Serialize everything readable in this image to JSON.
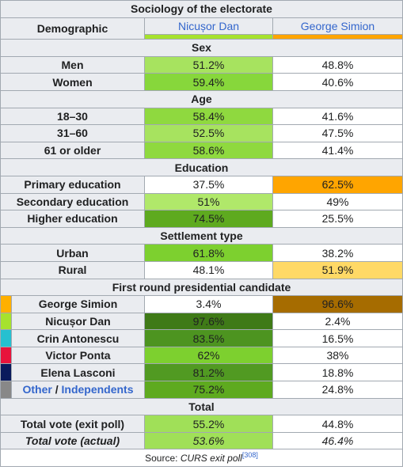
{
  "table": {
    "title": "Sociology of the electorate",
    "header": {
      "demographic_label": "Demographic",
      "candidate_1": "Nicușor Dan",
      "candidate_2": "George Simion",
      "candidate_1_color": "#a6e22e",
      "candidate_2_color": "#ffa500"
    },
    "sections": [
      {
        "title": "Sex",
        "rows": [
          {
            "label": "Men",
            "v1": "51.2%",
            "v2": "48.8%",
            "bg1": "#a7e35f",
            "bg2": "#ffffff"
          },
          {
            "label": "Women",
            "v1": "59.4%",
            "v2": "40.6%",
            "bg1": "#87d73b",
            "bg2": "#ffffff"
          }
        ]
      },
      {
        "title": "Age",
        "rows": [
          {
            "label": "18–30",
            "v1": "58.4%",
            "v2": "41.6%",
            "bg1": "#8fd93f",
            "bg2": "#ffffff"
          },
          {
            "label": "31–60",
            "v1": "52.5%",
            "v2": "47.5%",
            "bg1": "#a7e35f",
            "bg2": "#ffffff"
          },
          {
            "label": "61 or older",
            "v1": "58.6%",
            "v2": "41.4%",
            "bg1": "#8fd93f",
            "bg2": "#ffffff"
          }
        ]
      },
      {
        "title": "Education",
        "rows": [
          {
            "label": "Primary education",
            "v1": "37.5%",
            "v2": "62.5%",
            "bg1": "#ffffff",
            "bg2": "#ffa500"
          },
          {
            "label": "Secondary education",
            "v1": "51%",
            "v2": "49%",
            "bg1": "#b0e86a",
            "bg2": "#ffffff"
          },
          {
            "label": "Higher education",
            "v1": "74.5%",
            "v2": "25.5%",
            "bg1": "#5eaa1f",
            "bg2": "#ffffff"
          }
        ]
      },
      {
        "title": "Settlement type",
        "rows": [
          {
            "label": "Urban",
            "v1": "61.8%",
            "v2": "38.2%",
            "bg1": "#7dd02f",
            "bg2": "#ffffff"
          },
          {
            "label": "Rural",
            "v1": "48.1%",
            "v2": "51.9%",
            "bg1": "#ffffff",
            "bg2": "#ffd966"
          }
        ]
      }
    ],
    "first_round": {
      "title": "First round presidential candidate",
      "rows": [
        {
          "label": "George Simion",
          "swatch": "#ffb000",
          "v1": "3.4%",
          "v2": "96.6%",
          "bg1": "#ffffff",
          "bg2": "#a66c00"
        },
        {
          "label": "Nicușor Dan",
          "swatch": "#a6e22e",
          "v1": "97.6%",
          "v2": "2.4%",
          "bg1": "#3f7a17",
          "bg2": "#ffffff"
        },
        {
          "label": "Crin Antonescu",
          "swatch": "#26c0d0",
          "v1": "83.5%",
          "v2": "16.5%",
          "bg1": "#4d9420",
          "bg2": "#ffffff"
        },
        {
          "label": "Victor Ponta",
          "swatch": "#e8143c",
          "v1": "62%",
          "v2": "38%",
          "bg1": "#7dd02f",
          "bg2": "#ffffff"
        },
        {
          "label": "Elena Lasconi",
          "swatch": "#0a1a5c",
          "v1": "81.2%",
          "v2": "18.8%",
          "bg1": "#519a22",
          "bg2": "#ffffff"
        }
      ],
      "other_row": {
        "label_other": "Other",
        "label_sep": " / ",
        "label_indep": "Independents",
        "swatch": "#888888",
        "v1": "75.2%",
        "v2": "24.8%",
        "bg1": "#5eaa1f",
        "bg2": "#ffffff"
      }
    },
    "total": {
      "title": "Total",
      "exit_poll": {
        "label": "Total vote (exit poll)",
        "v1": "55.2%",
        "v2": "44.8%",
        "bg1": "#a0e058",
        "bg2": "#ffffff"
      },
      "actual": {
        "label": "Total vote (actual)",
        "v1": "53.6%",
        "v2": "46.4%",
        "bg1": "#a0e058",
        "bg2": "#ffffff"
      }
    },
    "source": {
      "prefix": "Source: ",
      "name": "CURS exit poll",
      "ref": "[308]"
    }
  }
}
